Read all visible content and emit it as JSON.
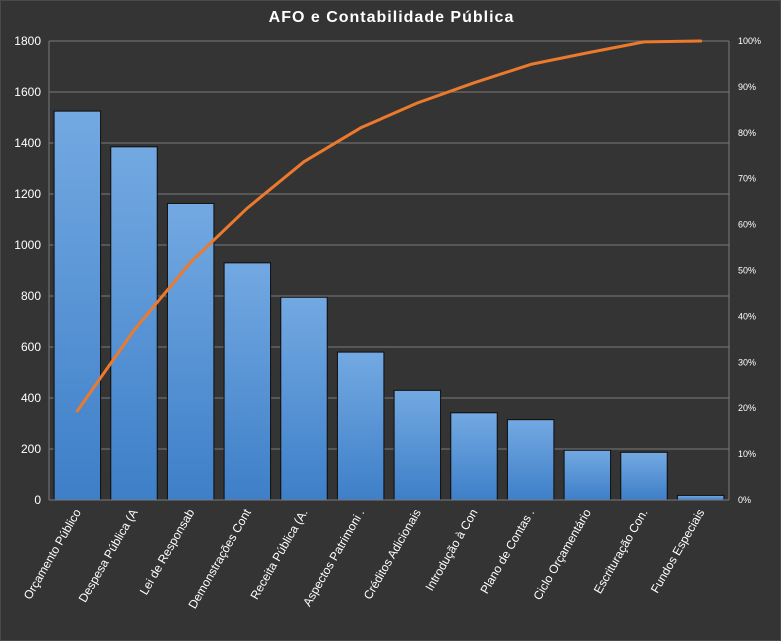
{
  "chart_data": {
    "type": "bar",
    "title": "AFO e Contabilidade Pública",
    "categories": [
      "Orçamento Público",
      "Despesa Pública (A",
      "Lei de Responsab",
      "Demonstrações Cont",
      "Receita Pública (A.",
      "Aspectos Patrimoni .",
      "Créditos Adicionais",
      "Introdução à Con",
      "Plano de Contas .",
      "Ciclo Orçamentário",
      "Escrituração Con.",
      "Fundos Especiais"
    ],
    "series": [
      {
        "type": "bar",
        "axis": "left",
        "values": [
          1525,
          1385,
          1163,
          930,
          795,
          580,
          430,
          342,
          315,
          195,
          187,
          18
        ]
      },
      {
        "type": "line",
        "axis": "right",
        "values": [
          19.4,
          37.0,
          51.8,
          63.6,
          73.7,
          81.1,
          86.5,
          90.9,
          94.9,
          97.4,
          99.8,
          100.0
        ]
      }
    ],
    "y_left": {
      "ylim": [
        0,
        1800
      ],
      "ticks": [
        "0",
        "200",
        "400",
        "600",
        "800",
        "1000",
        "1200",
        "1400",
        "1600",
        "1800"
      ]
    },
    "y_right": {
      "ylim": [
        0,
        100
      ],
      "ticks": [
        "0%",
        "10%",
        "20%",
        "30%",
        "40%",
        "50%",
        "60%",
        "70%",
        "80%",
        "90%",
        "100%"
      ]
    },
    "grid": true,
    "legend": "none",
    "colors": {
      "background": "#343434",
      "bar_top": "#73a9e2",
      "bar_bottom": "#3e7fc8",
      "bar_border": "#0d0d0d",
      "line": "#ec7a2c",
      "grid": "#7a7a7a",
      "text": "#ffffff"
    }
  }
}
